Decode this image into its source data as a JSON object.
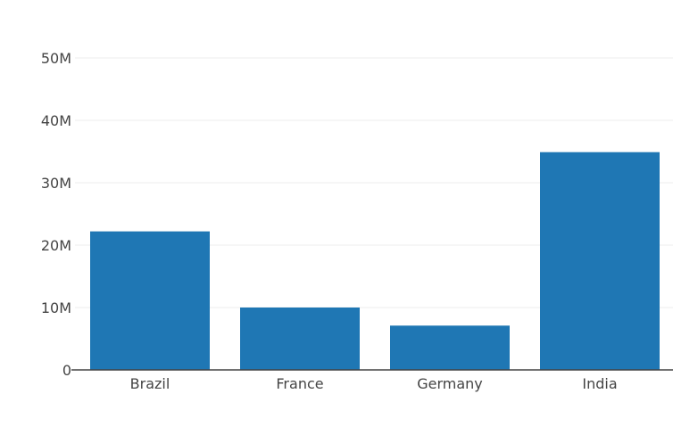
{
  "chart_data": {
    "type": "bar",
    "title": "",
    "xlabel": "",
    "ylabel": "",
    "categories": [
      "Brazil",
      "France",
      "Germany",
      "India"
    ],
    "values": [
      22200000,
      10000000,
      7100000,
      34900000
    ],
    "ylim": [
      0,
      50000000
    ],
    "yticks": [
      0,
      10000000,
      20000000,
      30000000,
      40000000,
      50000000
    ],
    "ytick_labels": [
      "0",
      "10M",
      "20M",
      "30M",
      "40M",
      "50M"
    ],
    "grid": true,
    "bar_color": "#1f77b4"
  }
}
